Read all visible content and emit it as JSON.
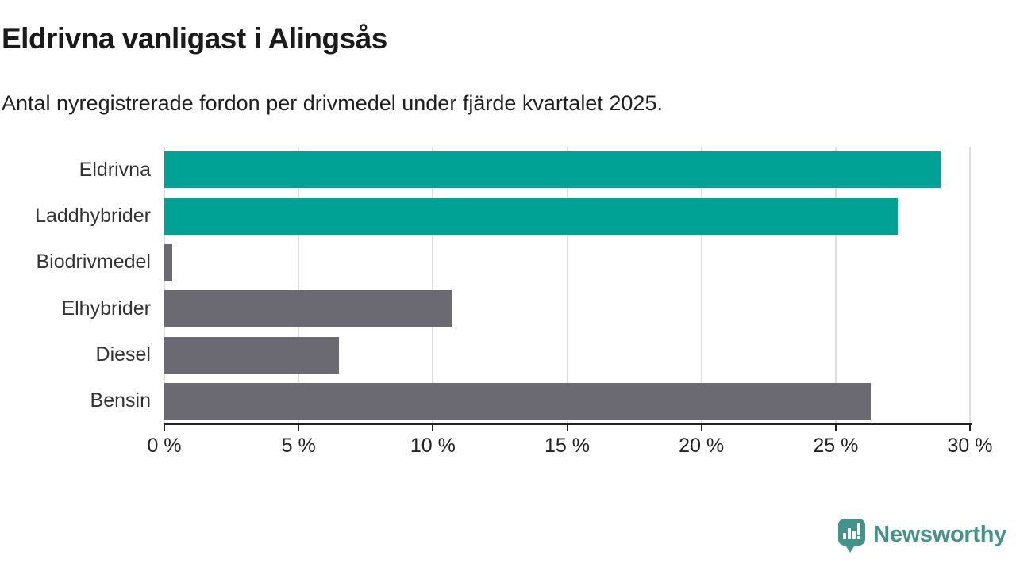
{
  "title": "Eldrivna vanligast i Alingsås",
  "subtitle": "Antal nyregistrerade fordon per drivmedel under fjärde kvartalet 2025.",
  "chart_data": {
    "type": "bar",
    "orientation": "horizontal",
    "categories": [
      "Eldrivna",
      "Laddhybrider",
      "Biodrivmedel",
      "Elhybrider",
      "Diesel",
      "Bensin"
    ],
    "values": [
      28.9,
      27.3,
      0.3,
      10.7,
      6.5,
      26.3
    ],
    "unit": "%",
    "bar_colors": [
      "#00a296",
      "#00a296",
      "#6b6a72",
      "#6b6a72",
      "#6b6a72",
      "#6b6a72"
    ],
    "title": "Eldrivna vanligast i Alingsås",
    "subtitle": "Antal nyregistrerade fordon per drivmedel under fjärde kvartalet 2025.",
    "xlabel": "",
    "ylabel": "",
    "xlim": [
      0,
      30
    ],
    "x_ticks": [
      0,
      5,
      10,
      15,
      20,
      25,
      30
    ],
    "x_tick_labels": [
      "0 %",
      "5 %",
      "10 %",
      "15 %",
      "20 %",
      "25 %",
      "30 %"
    ],
    "grid": true,
    "legend": false
  },
  "colors": {
    "teal": "#00a296",
    "gray": "#6b6a72",
    "grid": "#dedede",
    "axis": "#222222",
    "title_text": "#1a1a1a",
    "label_text": "#333333",
    "brand_teal": "#44938b"
  },
  "branding": {
    "name": "Newsworthy",
    "icon": "bar-chart-speech-bubble-icon"
  }
}
